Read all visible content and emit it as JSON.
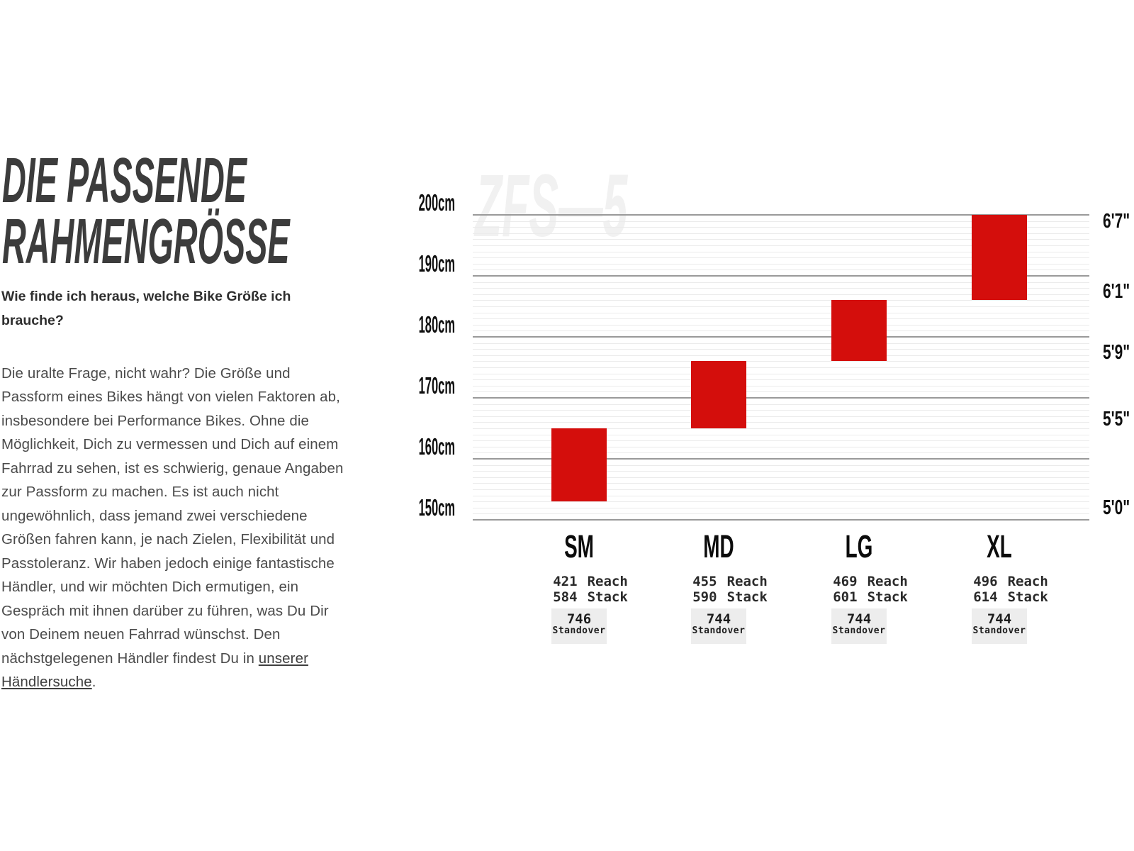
{
  "intro": {
    "title_line1": "DIE PASSENDE",
    "title_line2": "RAHMENGRÖSSE",
    "subtitle": "Wie finde ich heraus, welche Bike Größe ich brauche?",
    "paragraph_before": "Die uralte Frage, nicht wahr? Die Größe und Passform eines Bikes hängt von vielen Faktoren ab, insbesondere bei Performance Bikes. Ohne die Möglichkeit, Dich zu vermessen und Dich auf einem Fahrrad zu sehen, ist es schwierig, genaue Angaben zur Passform zu machen. Es ist auch nicht ungewöhnlich, dass jemand zwei verschiedene Größen fahren kann, je nach Zielen, Flexibilität und Passtoleranz. Wir haben jedoch einige fantastische Händler, und wir möchten Dich ermutigen, ein Gespräch mit ihnen darüber zu führen, was Du Dir von Deinem neuen Fahrrad wünschst. Den nächstgelegenen Händler findest Du in ",
    "link_text": "unserer Händlersuche",
    "paragraph_after": "."
  },
  "chart_data": {
    "type": "bar",
    "subtype": "floating-range-columns",
    "watermark": "ZFS—5",
    "bar_color": "#d40e0c",
    "categories": [
      "SM",
      "MD",
      "LG",
      "XL"
    ],
    "series": [
      {
        "name": "rider-height-range-cm",
        "values": [
          [
            153,
            165
          ],
          [
            165,
            176
          ],
          [
            176,
            186
          ],
          [
            186,
            200
          ]
        ]
      }
    ],
    "y_axis_left": {
      "unit": "cm",
      "min": 150,
      "max": 200,
      "major_step_cm": 10,
      "minor_step_cm": 1,
      "ticks": [
        {
          "cm": 200,
          "label": "200cm"
        },
        {
          "cm": 190,
          "label": "190cm"
        },
        {
          "cm": 180,
          "label": "180cm"
        },
        {
          "cm": 170,
          "label": "170cm"
        },
        {
          "cm": 160,
          "label": "160cm"
        },
        {
          "cm": 150,
          "label": "150cm"
        }
      ]
    },
    "y_axis_right": {
      "unit": "ft-in",
      "ticks": [
        {
          "cm": 199,
          "label": "6'7\""
        },
        {
          "cm": 187.5,
          "label": "6'1\""
        },
        {
          "cm": 177.5,
          "label": "5'9\""
        },
        {
          "cm": 166.5,
          "label": "5'5\""
        },
        {
          "cm": 152,
          "label": "5'0\""
        }
      ]
    },
    "sizes": [
      {
        "code": "SM",
        "height_min_cm": 153,
        "height_max_cm": 165,
        "reach": "421",
        "stack": "584",
        "standover": "746"
      },
      {
        "code": "MD",
        "height_min_cm": 165,
        "height_max_cm": 176,
        "reach": "455",
        "stack": "590",
        "standover": "744"
      },
      {
        "code": "LG",
        "height_min_cm": 176,
        "height_max_cm": 186,
        "reach": "469",
        "stack": "601",
        "standover": "744"
      },
      {
        "code": "XL",
        "height_min_cm": 186,
        "height_max_cm": 200,
        "reach": "496",
        "stack": "614",
        "standover": "744"
      }
    ],
    "labels": {
      "reach": "Reach",
      "stack": "Stack",
      "standover": "Standover"
    },
    "grid": {
      "major_color": "#9a9a9a",
      "minor_color": "#ebebeb"
    }
  }
}
